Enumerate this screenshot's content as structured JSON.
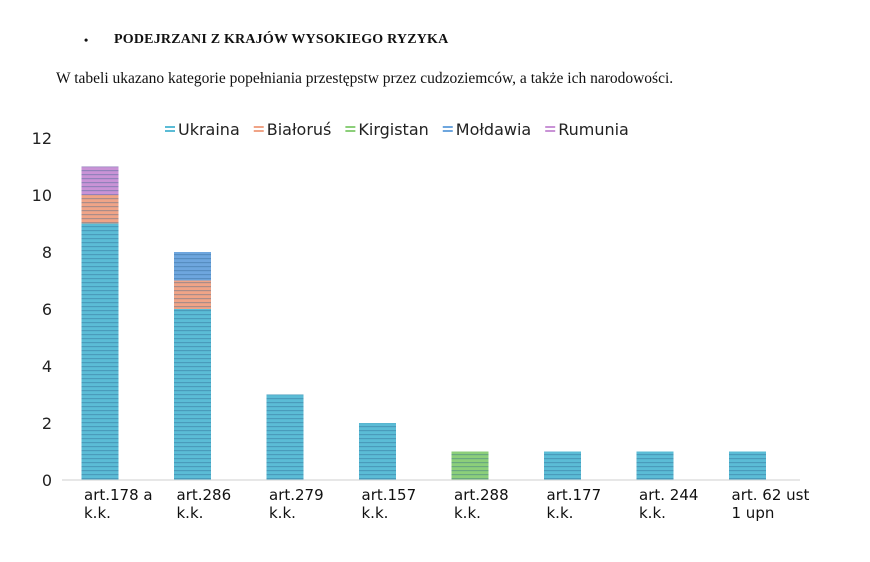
{
  "heading": {
    "bullet": "•",
    "text": "PODEJRZANI Z KRAJÓW WYSOKIEGO RYZYKA"
  },
  "intro": "W tabeli ukazano kategorie popełniania przestępstw przez cudzoziemców, a także ich narodowości.",
  "chart_data": {
    "type": "bar",
    "stacked": true,
    "categories": [
      [
        "art.178 a",
        "k.k."
      ],
      [
        "art.286",
        "k.k."
      ],
      [
        "art.279",
        "k.k."
      ],
      [
        "art.157",
        "k.k."
      ],
      [
        "art.288",
        "k.k."
      ],
      [
        "art.177",
        "k.k."
      ],
      [
        "art. 244",
        "k.k."
      ],
      [
        "art. 62 ust",
        "1 upn"
      ]
    ],
    "series": [
      {
        "name": "Ukraina",
        "color": "#5bbcd6",
        "values": [
          9,
          6,
          3,
          2,
          0,
          1,
          1,
          1
        ]
      },
      {
        "name": "Białoruś",
        "color": "#f0a487",
        "values": [
          1,
          1,
          0,
          0,
          0,
          0,
          0,
          0
        ]
      },
      {
        "name": "Kirgistan",
        "color": "#8ccf7a",
        "values": [
          0,
          0,
          0,
          0,
          1,
          0,
          0,
          0
        ]
      },
      {
        "name": "Mołdawia",
        "color": "#6ea6de",
        "values": [
          0,
          1,
          0,
          0,
          0,
          0,
          0,
          0
        ]
      },
      {
        "name": "Rumunia",
        "color": "#c993d6",
        "values": [
          1,
          0,
          0,
          0,
          0,
          0,
          0,
          0
        ]
      }
    ],
    "ylim": [
      0,
      12
    ],
    "yticks": [
      "0",
      "2",
      "4",
      "6",
      "8",
      "10",
      "12"
    ],
    "legend_position": "top",
    "grid": false
  }
}
